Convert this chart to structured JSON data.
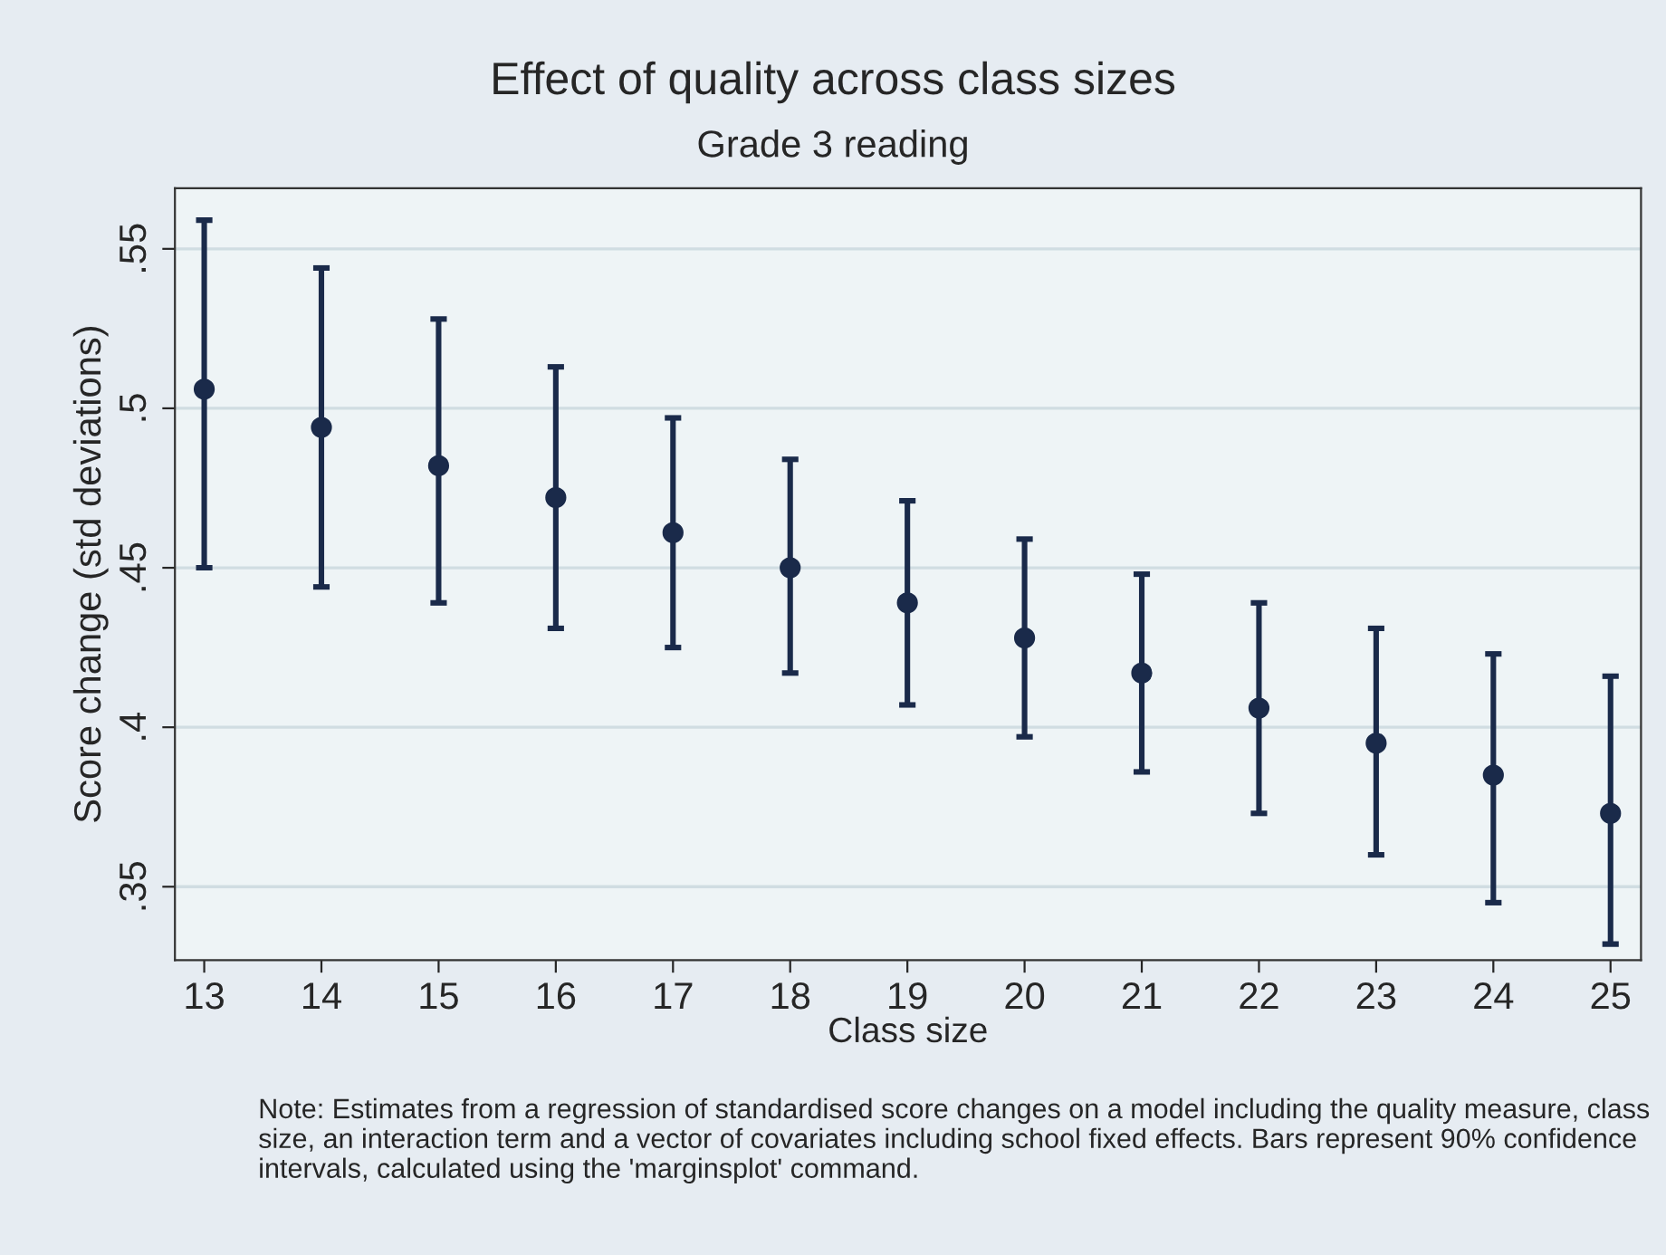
{
  "chart_data": {
    "type": "scatter",
    "title": "Effect of quality across class sizes",
    "subtitle": "Grade 3 reading",
    "xlabel": "Class size",
    "ylabel": "Score change (std deviations)",
    "x": [
      13,
      14,
      15,
      16,
      17,
      18,
      19,
      20,
      21,
      22,
      23,
      24,
      25
    ],
    "series": [
      {
        "color": "#1a2a4a",
        "values": [
          0.506,
          0.494,
          0.482,
          0.472,
          0.461,
          0.45,
          0.439,
          0.428,
          0.417,
          0.406,
          0.395,
          0.385,
          0.373
        ],
        "errors": [
          [
            0.45,
            0.559
          ],
          [
            0.444,
            0.544
          ],
          [
            0.439,
            0.528
          ],
          [
            0.431,
            0.513
          ],
          [
            0.425,
            0.497
          ],
          [
            0.417,
            0.484
          ],
          [
            0.407,
            0.471
          ],
          [
            0.397,
            0.459
          ],
          [
            0.386,
            0.448
          ],
          [
            0.373,
            0.439
          ],
          [
            0.36,
            0.431
          ],
          [
            0.345,
            0.423
          ],
          [
            0.332,
            0.416
          ]
        ]
      }
    ],
    "xlim": [
      12.75,
      25.26
    ],
    "ylim": [
      0.327,
      0.569
    ],
    "xticks": [
      13,
      14,
      15,
      16,
      17,
      18,
      19,
      20,
      21,
      22,
      23,
      24,
      25
    ],
    "yticks": [
      {
        "value": 0.35,
        "label": ".35"
      },
      {
        "value": 0.4,
        "label": ".4"
      },
      {
        "value": 0.45,
        "label": ".45"
      },
      {
        "value": 0.5,
        "label": ".5"
      },
      {
        "value": 0.55,
        "label": ".55"
      }
    ],
    "grid": "y",
    "marker": "circle",
    "annotations": [
      "Note: Estimates from a regression of standardised score changes on a model including the quality measure, class size, an interaction term and a vector of covariates including school fixed effects. Bars represent 90% confidence intervals, calculated using the 'marginsplot' command."
    ]
  }
}
